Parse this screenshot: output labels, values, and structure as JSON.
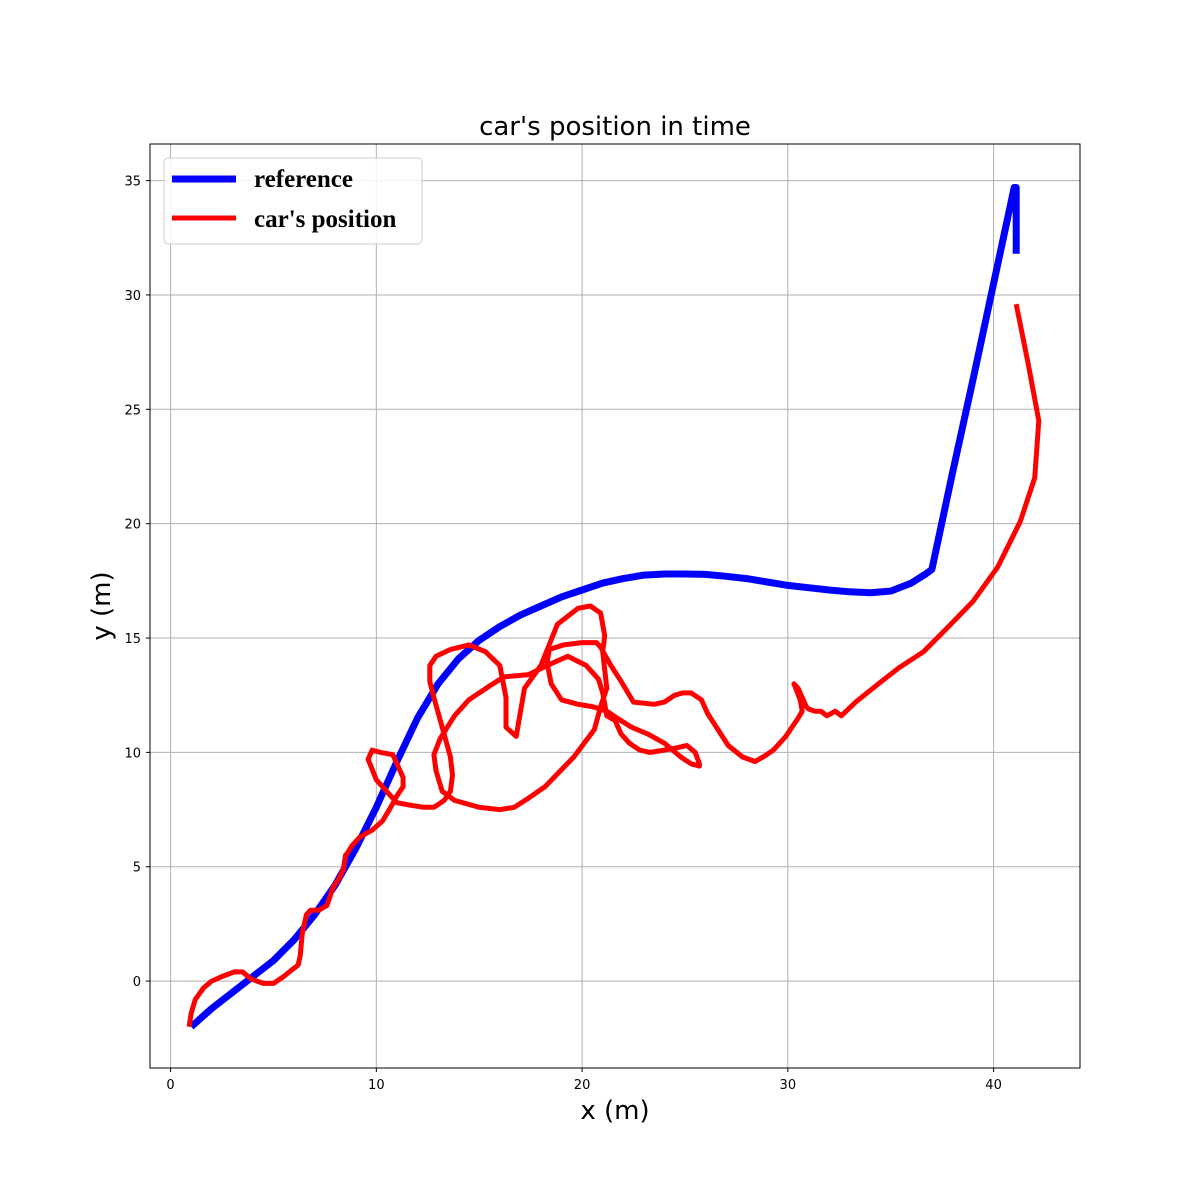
{
  "chart_data": {
    "type": "line",
    "title": "car's position in time",
    "xlabel": "x (m)",
    "ylabel": "y (m)",
    "xlim": [
      -1.0,
      44.2
    ],
    "ylim": [
      -3.8,
      36.6
    ],
    "xticks": [
      0,
      10,
      20,
      30,
      40
    ],
    "yticks": [
      0,
      5,
      10,
      15,
      20,
      25,
      30,
      35
    ],
    "grid": true,
    "legend_position": "upper-left",
    "series": [
      {
        "name": "reference",
        "color": "#0000ff",
        "x": [
          1.0,
          2.0,
          3.0,
          4.0,
          5.0,
          6.0,
          7.0,
          8.0,
          9.0,
          10.0,
          11.0,
          12.0,
          13.0,
          14.0,
          15.0,
          16.0,
          17.0,
          18.0,
          19.0,
          20.0,
          21.0,
          22.0,
          23.0,
          24.0,
          25.0,
          26.0,
          27.0,
          28.0,
          29.0,
          30.0,
          31.0,
          32.0,
          33.0,
          34.0,
          35.0,
          36.0,
          36.7,
          37.0,
          38.0,
          39.0,
          40.0,
          41.0,
          41.1,
          41.1
        ],
        "y": [
          -2.0,
          -1.2,
          -0.5,
          0.2,
          0.9,
          1.8,
          2.9,
          4.2,
          5.8,
          7.6,
          9.6,
          11.5,
          13.0,
          14.1,
          14.9,
          15.5,
          16.0,
          16.4,
          16.8,
          17.1,
          17.4,
          17.6,
          17.75,
          17.8,
          17.8,
          17.78,
          17.7,
          17.6,
          17.45,
          17.3,
          17.2,
          17.1,
          17.02,
          16.98,
          17.05,
          17.4,
          17.8,
          18.0,
          22.2,
          26.3,
          30.5,
          34.7,
          34.7,
          31.8
        ]
      },
      {
        "name": "car's position",
        "color": "#ff0000",
        "x": [
          0.9,
          1.0,
          1.2,
          1.6,
          2.0,
          2.5,
          3.1,
          3.5,
          3.9,
          4.5,
          5.0,
          5.5,
          5.9,
          6.2,
          6.3,
          6.4,
          6.6,
          6.8,
          7.2,
          7.6,
          7.9,
          8.2,
          8.4,
          8.5,
          8.6,
          8.8,
          9.2,
          9.8,
          10.3,
          10.7,
          11.0,
          11.3,
          11.3,
          10.8,
          10.2,
          9.8,
          9.6,
          10.0,
          10.5,
          11.0,
          11.6,
          12.3,
          12.8,
          13.3,
          13.6,
          13.7,
          13.6,
          13.2,
          12.8,
          12.6,
          12.6,
          12.9,
          13.6,
          14.5,
          15.3,
          16.0,
          16.3,
          16.3,
          16.8,
          17.2,
          18.0,
          18.8,
          19.8,
          20.4,
          20.9,
          21.1,
          21.0,
          21.2,
          20.9,
          20.6,
          19.6,
          18.2,
          17.4,
          16.7,
          16.0,
          15.0,
          13.8,
          13.2,
          12.9,
          12.8,
          13.1,
          13.8,
          14.5,
          15.5,
          16.2,
          17.4,
          18.3,
          19.3,
          20.2,
          20.8,
          21.0,
          21.2,
          21.6,
          21.9,
          22.3,
          22.8,
          23.3,
          24.0,
          24.6,
          25.1,
          25.5,
          25.7,
          25.7,
          25.3,
          24.8,
          24.0,
          23.2,
          22.4,
          21.7,
          21.2,
          20.5,
          19.8,
          19.0,
          18.5,
          18.3,
          18.4,
          19.1,
          20.0,
          20.7,
          20.9,
          21.4,
          21.9,
          22.5,
          23.5,
          24.0,
          24.5,
          24.9,
          25.3,
          25.8,
          26.1,
          26.6,
          27.1,
          27.8,
          28.4,
          28.8,
          29.3,
          29.9,
          30.5,
          30.7,
          30.6,
          30.3,
          30.5,
          30.7,
          30.9,
          31.0,
          31.3,
          31.6,
          31.9,
          32.3,
          32.6,
          33.3,
          34.4,
          35.4,
          36.6,
          37.7,
          39.0,
          40.2,
          41.3,
          42.0,
          42.2,
          41.7,
          41.1
        ],
        "y": [
          -2.0,
          -1.4,
          -0.8,
          -0.3,
          0.0,
          0.2,
          0.4,
          0.4,
          0.1,
          -0.1,
          -0.1,
          0.2,
          0.5,
          0.7,
          1.1,
          2.1,
          2.9,
          3.1,
          3.1,
          3.3,
          4.1,
          4.5,
          4.9,
          5.5,
          5.6,
          5.9,
          6.3,
          6.6,
          7.0,
          7.6,
          8.1,
          8.5,
          8.9,
          9.9,
          10.0,
          10.1,
          9.7,
          8.8,
          8.3,
          7.8,
          7.7,
          7.6,
          7.6,
          7.9,
          8.3,
          9.0,
          9.8,
          11.1,
          12.4,
          13.1,
          13.8,
          14.2,
          14.5,
          14.7,
          14.4,
          13.8,
          12.4,
          11.1,
          10.7,
          12.8,
          13.8,
          15.6,
          16.3,
          16.4,
          16.1,
          15.1,
          14.4,
          12.8,
          12.0,
          11.0,
          9.8,
          8.5,
          8.0,
          7.6,
          7.5,
          7.6,
          7.9,
          8.3,
          9.2,
          9.9,
          10.6,
          11.6,
          12.3,
          12.9,
          13.3,
          13.4,
          13.8,
          14.2,
          13.8,
          13.2,
          12.6,
          11.6,
          11.4,
          10.8,
          10.4,
          10.1,
          10.0,
          10.1,
          10.2,
          10.3,
          10.0,
          9.5,
          9.4,
          9.5,
          9.8,
          10.4,
          10.8,
          11.1,
          11.5,
          11.8,
          12.0,
          12.1,
          12.3,
          13.0,
          13.9,
          14.5,
          14.7,
          14.8,
          14.8,
          14.6,
          13.8,
          13.1,
          12.2,
          12.1,
          12.2,
          12.5,
          12.6,
          12.6,
          12.3,
          11.7,
          11.0,
          10.3,
          9.8,
          9.6,
          9.8,
          10.1,
          10.7,
          11.5,
          11.8,
          12.3,
          13.0,
          12.8,
          12.4,
          12.0,
          11.9,
          11.8,
          11.8,
          11.6,
          11.8,
          11.6,
          12.2,
          13.0,
          13.7,
          14.4,
          15.4,
          16.6,
          18.1,
          20.1,
          22.0,
          24.5,
          26.9,
          29.6
        ]
      }
    ]
  }
}
